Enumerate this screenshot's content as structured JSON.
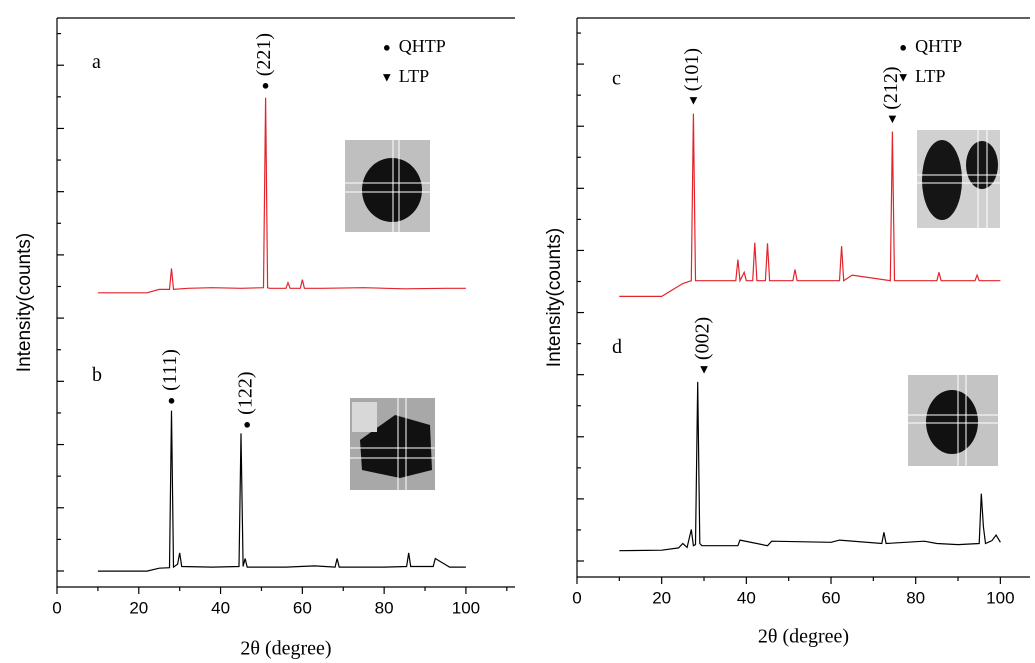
{
  "chart_data": [
    {
      "type": "line",
      "x_label": "2θ (degree)",
      "y_label": "Intensity(counts)",
      "xlim": [
        0,
        112
      ],
      "xticks": [
        0,
        20,
        40,
        60,
        80,
        100
      ],
      "ylim": [
        0,
        100
      ],
      "legend": [
        {
          "symbol": "●",
          "label": "QHTP"
        },
        {
          "symbol": "▼",
          "label": "LTP"
        }
      ],
      "legend_position": "upper right",
      "series": [
        {
          "name": "a",
          "color": "#e3242b",
          "x": [
            10,
            22,
            25,
            27.5,
            28,
            28.5,
            32,
            38,
            45,
            50.5,
            51,
            51.5,
            52,
            56,
            56.5,
            57,
            59.5,
            60,
            60.5,
            65,
            75,
            85,
            95,
            100
          ],
          "values": [
            51.7,
            51.7,
            52.3,
            52.3,
            56,
            52.3,
            52.5,
            52.6,
            52.5,
            52.6,
            86,
            52.6,
            52.5,
            52.5,
            53.5,
            52.5,
            52.5,
            54,
            52.5,
            52.5,
            52.6,
            52.4,
            52.5,
            52.5
          ]
        },
        {
          "name": "b",
          "color": "#000000",
          "x": [
            10,
            22,
            25,
            27.5,
            28,
            28.5,
            29.5,
            30,
            30.5,
            38,
            44.5,
            45,
            45.5,
            46,
            46.5,
            56,
            63,
            68,
            68.5,
            69,
            80,
            85.5,
            86,
            86.5,
            92,
            92.5,
            96,
            100
          ],
          "values": [
            2.8,
            2.8,
            3.3,
            3.4,
            31,
            3.5,
            4,
            6,
            3.6,
            3.5,
            3.6,
            27,
            3.6,
            5,
            3.5,
            3.5,
            3.7,
            3.5,
            5,
            3.5,
            3.5,
            3.6,
            6,
            3.6,
            3.6,
            5,
            3.5,
            3.5
          ]
        }
      ],
      "annotations": [
        {
          "marker": "●",
          "label": "(221)",
          "x": 51,
          "y": 88
        },
        {
          "marker": "●",
          "label": "(111)",
          "x": 28,
          "y": 32.7
        },
        {
          "marker": "●",
          "label": "(122)",
          "x": 46.5,
          "y": 28.5
        }
      ]
    },
    {
      "type": "line",
      "x_label": "2θ (degree)",
      "y_label": "Intensity(counts)",
      "xlim": [
        0,
        107
      ],
      "xticks": [
        0,
        20,
        40,
        60,
        80,
        100
      ],
      "ylim": [
        0,
        100
      ],
      "legend": [
        {
          "symbol": "●",
          "label": "QHTP"
        },
        {
          "symbol": "▼",
          "label": "LTP"
        }
      ],
      "legend_position": "upper right",
      "series": [
        {
          "name": "c",
          "color": "#e3242b",
          "x": [
            10,
            20,
            25,
            27,
            27.5,
            28,
            30,
            37.5,
            38,
            38.5,
            39.5,
            40,
            41.5,
            42,
            42.5,
            44.5,
            45,
            45.5,
            51,
            51.5,
            52,
            62,
            62.5,
            63,
            65,
            74,
            74.5,
            75,
            80,
            85,
            85.5,
            86,
            94,
            94.5,
            95,
            100
          ],
          "values": [
            50.2,
            50.2,
            52.5,
            53,
            82.9,
            53,
            53,
            53,
            56.8,
            53,
            54.5,
            53,
            53,
            59.8,
            53,
            53,
            59.7,
            53,
            53,
            55,
            53,
            53,
            59.2,
            53,
            54,
            53,
            79.7,
            53,
            53,
            53,
            54.5,
            53,
            53,
            54,
            53,
            53
          ]
        },
        {
          "name": "d",
          "color": "#000000",
          "x": [
            10,
            20,
            24,
            25,
            26,
            27,
            27.5,
            28,
            28.5,
            29,
            29.5,
            30,
            38,
            38.5,
            45,
            46,
            60,
            62,
            72,
            72.5,
            73,
            82,
            85,
            90,
            95,
            95.5,
            96,
            96.5,
            98,
            99,
            100
          ],
          "values": [
            4.7,
            4.8,
            5.2,
            6,
            5.3,
            8.5,
            5.6,
            5.8,
            34.9,
            6,
            5.6,
            5.6,
            5.6,
            6.6,
            5.6,
            6.4,
            6.2,
            6.6,
            6,
            8,
            6,
            6.4,
            6,
            5.8,
            6,
            14.9,
            9,
            6,
            6.5,
            7.5,
            6.2
          ]
        }
      ],
      "annotations": [
        {
          "marker": "▼",
          "label": "(101)",
          "x": 27.5,
          "y": 85.1
        },
        {
          "marker": "▼",
          "label": "(212)",
          "x": 74.5,
          "y": 81.8
        },
        {
          "marker": "▼",
          "label": "(002)",
          "x": 30,
          "y": 37
        }
      ]
    }
  ]
}
